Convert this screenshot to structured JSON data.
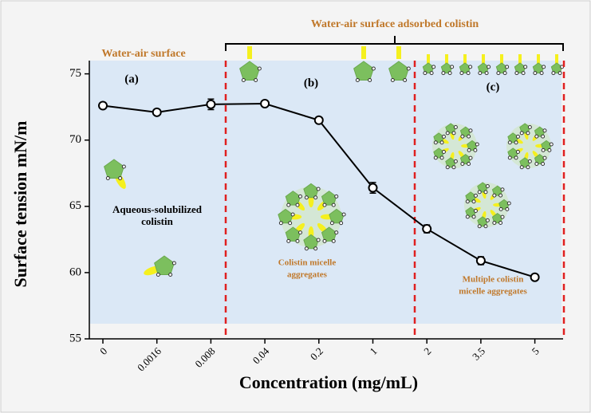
{
  "chart_data": {
    "type": "line",
    "x_label": "Concentration (mg/mL)",
    "y_label": "Surface tension mN/m",
    "categories": [
      "0",
      "0.0016",
      "0.008",
      "0.04",
      "0.2",
      "1",
      "2",
      "3.5",
      "5"
    ],
    "series": [
      {
        "color": "#000000",
        "values": [
          72.6,
          72.1,
          72.7,
          72.75,
          71.5,
          66.4,
          63.3,
          60.9,
          59.65
        ],
        "errors": [
          0.1,
          0.1,
          0.4,
          0.1,
          0.1,
          0.4,
          0.3,
          0.3,
          0.1
        ]
      }
    ],
    "ylim": [
      55,
      76
    ],
    "yticks": [
      55,
      60,
      65,
      70,
      75
    ],
    "regions": [
      "(a)",
      "(b)",
      "(c)"
    ],
    "annotations": {
      "surface": "Water-air surface",
      "adsorbed": "Water-air surface adsorbed colistin",
      "aqueous": [
        "Aqueous-solubilized",
        "colistin"
      ],
      "micelle": [
        "Colistin micelle",
        "aggregates"
      ],
      "multiple": [
        "Multiple colistin",
        "micelle aggregates"
      ]
    }
  }
}
